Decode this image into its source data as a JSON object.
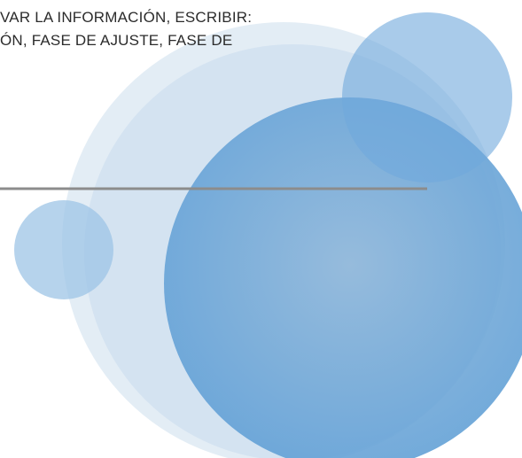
{
  "text_lines": [
    "VAR LA INFORMACIÓN, ESCRIBIR:",
    "ÓN, FASE DE AJUSTE, FASE DE"
  ]
}
